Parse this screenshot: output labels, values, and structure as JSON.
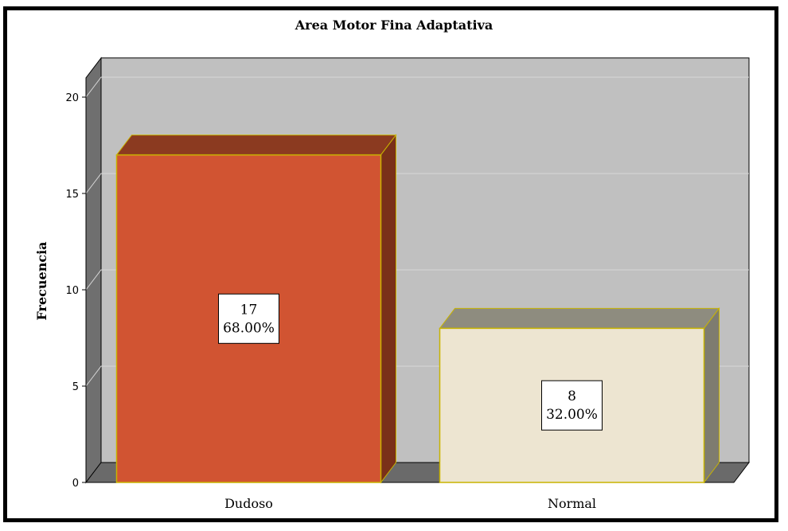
{
  "chart_data": {
    "type": "bar",
    "title": "Area Motor Fina Adaptativa",
    "xlabel": "",
    "ylabel": "Frecuencia",
    "categories": [
      "Dudoso",
      "Normal"
    ],
    "values": [
      17,
      8
    ],
    "data_labels": [
      {
        "count": "17",
        "percent": "68.00%"
      },
      {
        "count": "8",
        "percent": "32.00%"
      }
    ],
    "ylim": [
      0,
      21
    ],
    "yticks": [
      0,
      5,
      10,
      15,
      20
    ],
    "grid": true,
    "style": "3d",
    "colors": {
      "bar_fronts": [
        "#d15432",
        "#ede5d1"
      ],
      "bar_tops": [
        "#8b3a20",
        "#8e8c7f"
      ],
      "bar_sides": [
        "#7a3019",
        "#7e7c70"
      ],
      "bar_edge": "#c8b400",
      "plot_back": "#c0c0c0",
      "floor": "#6a6a6a",
      "left_wall": "#6f6f6f",
      "gridline": "#d8d8d8"
    }
  }
}
